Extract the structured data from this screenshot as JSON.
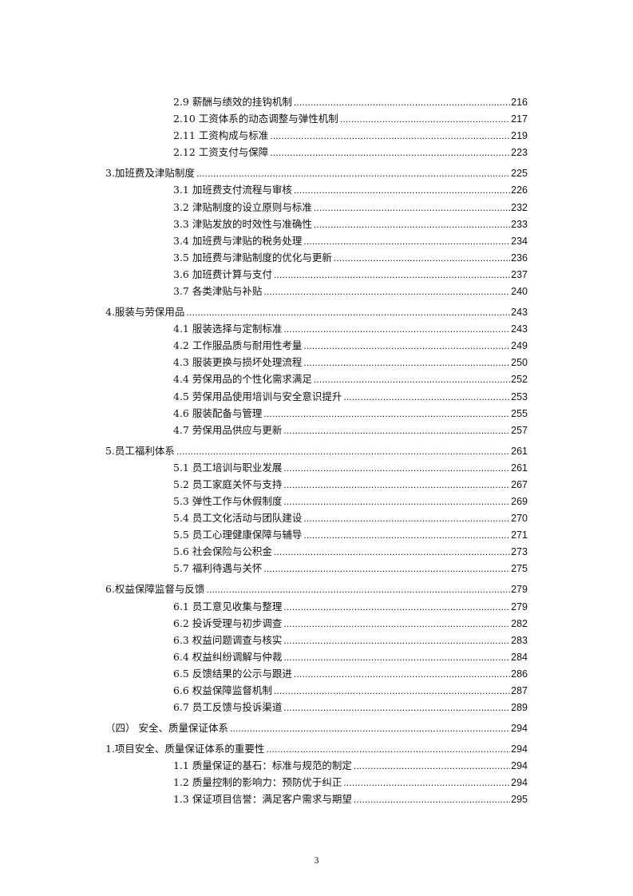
{
  "toc": [
    {
      "level": 2,
      "title": "2.9 薪酬与绩效的挂钩机制",
      "page": "216"
    },
    {
      "level": 2,
      "title": "2.10 工资体系的动态调整与弹性机制",
      "page": "217"
    },
    {
      "level": 2,
      "title": "2.11 工资构成与标准",
      "page": "219"
    },
    {
      "level": 2,
      "title": "2.12 工资支付与保障",
      "page": "223"
    },
    {
      "level": 1,
      "title": "3.加班费及津贴制度",
      "page": "225"
    },
    {
      "level": 2,
      "title": "3.1 加班费支付流程与审核",
      "page": "226"
    },
    {
      "level": 2,
      "title": "3.2 津贴制度的设立原则与标准",
      "page": "232"
    },
    {
      "level": 2,
      "title": "3.3 津贴发放的时效性与准确性",
      "page": "233"
    },
    {
      "level": 2,
      "title": "3.4 加班费与津贴的税务处理",
      "page": "234"
    },
    {
      "level": 2,
      "title": "3.5 加班费与津贴制度的优化与更新",
      "page": "236"
    },
    {
      "level": 2,
      "title": "3.6 加班费计算与支付",
      "page": "237"
    },
    {
      "level": 2,
      "title": "3.7 各类津贴与补贴",
      "page": "240"
    },
    {
      "level": 1,
      "title": "4.服装与劳保用品",
      "page": "243"
    },
    {
      "level": 2,
      "title": "4.1 服装选择与定制标准",
      "page": "243"
    },
    {
      "level": 2,
      "title": "4.2 工作服品质与耐用性考量",
      "page": "249"
    },
    {
      "level": 2,
      "title": "4.3 服装更换与损坏处理流程",
      "page": "250"
    },
    {
      "level": 2,
      "title": "4.4 劳保用品的个性化需求满足",
      "page": "252"
    },
    {
      "level": 2,
      "title": "4.5 劳保用品使用培训与安全意识提升",
      "page": "253"
    },
    {
      "level": 2,
      "title": "4.6 服装配备与管理",
      "page": "255"
    },
    {
      "level": 2,
      "title": "4.7 劳保用品供应与更新",
      "page": "257"
    },
    {
      "level": 1,
      "title": "5.员工福利体系",
      "page": "261"
    },
    {
      "level": 2,
      "title": "5.1 员工培训与职业发展",
      "page": "261"
    },
    {
      "level": 2,
      "title": "5.2 员工家庭关怀与支持",
      "page": "267"
    },
    {
      "level": 2,
      "title": "5.3 弹性工作与休假制度",
      "page": "269"
    },
    {
      "level": 2,
      "title": "5.4 员工文化活动与团队建设",
      "page": "270"
    },
    {
      "level": 2,
      "title": "5.5 员工心理健康保障与辅导",
      "page": "271"
    },
    {
      "level": 2,
      "title": "5.6 社会保险与公积金",
      "page": "273"
    },
    {
      "level": 2,
      "title": "5.7 福利待遇与关怀",
      "page": "275"
    },
    {
      "level": 1,
      "title": "6.权益保障监督与反馈",
      "page": "279"
    },
    {
      "level": 2,
      "title": "6.1 员工意见收集与整理",
      "page": "279"
    },
    {
      "level": 2,
      "title": "6.2 投诉受理与初步调查",
      "page": "282"
    },
    {
      "level": 2,
      "title": "6.3 权益问题调查与核实",
      "page": "283"
    },
    {
      "level": 2,
      "title": "6.4 权益纠纷调解与仲裁",
      "page": "284"
    },
    {
      "level": 2,
      "title": "6.5 反馈结果的公示与跟进",
      "page": "286"
    },
    {
      "level": 2,
      "title": "6.6 权益保障监督机制",
      "page": "287"
    },
    {
      "level": 2,
      "title": "6.7 员工反馈与投诉渠道",
      "page": "289"
    },
    {
      "level": 0,
      "title": "（四） 安全、质量保证体系",
      "page": "294"
    },
    {
      "level": 1,
      "title": "1.项目安全、质量保证体系的重要性",
      "page": "294"
    },
    {
      "level": 2,
      "title": "1.1 质量保证的基石：标准与规范的制定",
      "page": "294"
    },
    {
      "level": 2,
      "title": "1.2 质量控制的影响力：预防优于纠正",
      "page": "294"
    },
    {
      "level": 2,
      "title": "1.3 保证项目信誉：满足客户需求与期望",
      "page": "295"
    }
  ],
  "footer": {
    "page_number": "3"
  }
}
